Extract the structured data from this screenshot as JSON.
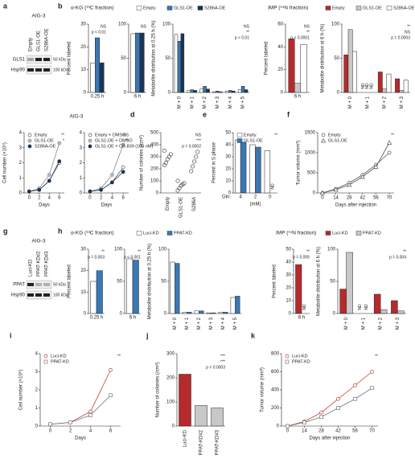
{
  "blots": [
    {
      "label": "a",
      "title": "AIG-3",
      "lanes": [
        "Empty",
        "GLS1-OE",
        "S286A-OE"
      ],
      "rows": [
        "GLS1",
        "Hsp90"
      ],
      "markers": [
        "50 kDa",
        "100 kDa"
      ]
    },
    {
      "label": "g",
      "title": "AIG-3",
      "lanes": [
        "Luci-KD",
        "PPAT-KD#2",
        "PPAT-KD#3"
      ],
      "rows": [
        "PPAT",
        "Hsp90"
      ],
      "markers": [
        "50 kDa",
        "100 kDa"
      ]
    }
  ],
  "chart_data": [
    {
      "type": "bar",
      "panel": "b",
      "group_title": "α-KG (¹³C fraction)",
      "legend": "top",
      "ylabel": "Percent labeled",
      "categories": [
        "0.25 h"
      ],
      "series": [
        {
          "name": "Empty",
          "color": "#ffffff",
          "values": [
            13
          ]
        },
        {
          "name": "GLS1-OE",
          "color": "#3a78b5",
          "values": [
            24
          ]
        },
        {
          "name": "S286A-OE",
          "color": "#1c3553",
          "values": [
            13
          ]
        }
      ],
      "ylim": [
        0,
        30
      ],
      "yticks": [
        0,
        10,
        20,
        30
      ],
      "annotations": [
        "NS",
        "p < 0.01"
      ]
    },
    {
      "type": "bar",
      "categories": [
        "6 h"
      ],
      "series": [
        {
          "color": "#ffffff",
          "values": [
            86
          ]
        },
        {
          "color": "#3a78b5",
          "values": [
            87
          ]
        },
        {
          "color": "#1c3553",
          "values": [
            87
          ]
        }
      ],
      "ylim": [
        0,
        100
      ],
      "yticks": [
        0,
        50,
        100
      ],
      "annotations": [
        "NS"
      ]
    },
    {
      "type": "bar",
      "ylabel": "Metabolite distribution at 0.25 h (%)",
      "categories": [
        "M + 0",
        "M + 1",
        "M + 2",
        "M + 3",
        "M + 4",
        "M + 5"
      ],
      "series": [
        {
          "color": "#ffffff",
          "values": [
            85,
            3,
            5,
            1,
            2,
            4
          ]
        },
        {
          "color": "#3a78b5",
          "values": [
            75,
            4,
            9,
            2,
            3,
            9
          ]
        },
        {
          "color": "#1c3553",
          "values": [
            86,
            3,
            5,
            1,
            2,
            4
          ]
        }
      ],
      "ylim": [
        0,
        100
      ],
      "yticks": [
        0,
        50,
        100
      ],
      "annotations": [
        "NS",
        "**",
        "p < 0.01"
      ]
    },
    {
      "type": "bar",
      "group_title": "IMP (¹⁵N fraction)",
      "legend": "top",
      "ylabel": "Percent labeled",
      "categories": [
        "6 h"
      ],
      "series": [
        {
          "name": "Empty",
          "color": "#b52b2b",
          "values": [
            47
          ]
        },
        {
          "name": "GLS1-OE",
          "color": "#c8c8c8",
          "values": [
            8
          ]
        },
        {
          "name": "S286A-OE",
          "color": "#ffffff",
          "values": [
            42
          ]
        }
      ],
      "ylim": [
        0,
        60
      ],
      "yticks": [
        0,
        20,
        40,
        60
      ],
      "annotations": [
        "NS",
        "**",
        "p < 0.0001"
      ]
    },
    {
      "type": "bar",
      "ylabel": "Metabolite distribution at 6 h (%)",
      "categories": [
        "M + 0",
        "M + 1",
        "M + 2",
        "M + 3"
      ],
      "nd_label": "ND",
      "series": [
        {
          "color": "#b52b2b",
          "values": [
            55,
            null,
            30,
            20
          ]
        },
        {
          "color": "#c8c8c8",
          "values": [
            92,
            null,
            5,
            3
          ]
        },
        {
          "color": "#ffffff",
          "values": [
            60,
            null,
            27,
            18
          ]
        }
      ],
      "ylim": [
        0,
        100
      ],
      "yticks": [
        0,
        50,
        100
      ],
      "annotations": [
        "**",
        "NS",
        "p = 0.0003"
      ]
    },
    {
      "type": "line",
      "panel": "c",
      "title": "AIG-3",
      "legend": "inside",
      "ylabel": "Cell number (×10⁶)",
      "xlabel": "Days",
      "x": [
        0,
        2,
        4,
        6
      ],
      "xlim": [
        -1,
        7
      ],
      "xticks": [
        0,
        2,
        4,
        6
      ],
      "series": [
        {
          "name": "Empty",
          "color": "#555555",
          "marker": "circle-open",
          "values": [
            0.1,
            0.2,
            0.8,
            2.0
          ]
        },
        {
          "name": "GLS1-OE",
          "color": "#888888",
          "marker": "circle-grey",
          "values": [
            0.1,
            0.3,
            1.2,
            3.3
          ]
        },
        {
          "name": "S286A-OE",
          "color": "#1c3553",
          "marker": "circle-filled",
          "values": [
            0.1,
            0.2,
            0.8,
            2.1
          ]
        }
      ],
      "ylim": [
        0,
        4
      ],
      "yticks": [
        0,
        1,
        2,
        3,
        4
      ],
      "annotations": [
        "**",
        "*"
      ]
    },
    {
      "type": "line",
      "legend": "inside",
      "xlabel": "Days",
      "x": [
        0,
        2,
        4,
        6
      ],
      "xlim": [
        -1,
        7
      ],
      "xticks": [
        0,
        2,
        4,
        6
      ],
      "series": [
        {
          "name": "Empty + DMSO",
          "color": "#555555",
          "marker": "circle-open",
          "values": [
            0.1,
            0.2,
            0.7,
            1.7
          ]
        },
        {
          "name": "GLS1-OE + DMSO",
          "color": "#888888",
          "marker": "circle-grey",
          "values": [
            0.1,
            0.3,
            1.2,
            3.2
          ]
        },
        {
          "name": "GLS1-OE + CB-839 (100 nM)",
          "color": "#1c3553",
          "marker": "circle-filled",
          "values": [
            0.1,
            0.2,
            0.7,
            1.4
          ]
        }
      ],
      "ylim": [
        0,
        4
      ],
      "yticks": [
        0,
        1,
        2,
        3,
        4
      ],
      "annotations": [
        "NS",
        "**"
      ]
    },
    {
      "type": "dot",
      "panel": "d",
      "ylabel": "Number of colonies (/cm²)",
      "categories": [
        "Empty",
        "GLS1-OE",
        "S286A"
      ],
      "color": "#333333",
      "values": [
        [
          230,
          250,
          280,
          300,
          320,
          350
        ],
        [
          20,
          40,
          60,
          70,
          80,
          100
        ],
        [
          180,
          220,
          260,
          300,
          340
        ]
      ],
      "ylim": [
        0,
        500
      ],
      "yticks": [
        0,
        100,
        200,
        300,
        400,
        500
      ],
      "annotations": [
        "NS",
        "***",
        "p = 0.0002"
      ]
    },
    {
      "type": "bar",
      "panel": "e",
      "legend": "inside",
      "ylabel": "Percent in S phase",
      "xprefix": "Gln:",
      "xlabel": "(mM)",
      "categories": [
        "4",
        "2",
        "0"
      ],
      "nd_label": "ND",
      "series": [
        {
          "name": "Empty",
          "color": "#ffffff",
          "values": [
            44,
            40,
            35
          ]
        },
        {
          "name": "GLS1-OE",
          "color": "#3a78b5",
          "values": [
            42,
            38,
            null
          ]
        }
      ],
      "ylim": [
        0,
        50
      ],
      "yticks": [
        0,
        10,
        20,
        30,
        40,
        50
      ],
      "annotations": [
        "**"
      ]
    },
    {
      "type": "line",
      "panel": "f",
      "legend": "inside",
      "ylabel": "Tumor volume (mm³)",
      "xlabel": "Days after injection",
      "x": [
        0,
        14,
        28,
        42,
        56,
        70
      ],
      "xlim": [
        -5,
        75
      ],
      "xticks": [
        0,
        14,
        28,
        42,
        56,
        70
      ],
      "series": [
        {
          "name": "Empty",
          "color": "#555555",
          "marker": "circle-open",
          "values": [
            0,
            100,
            250,
            450,
            700,
            1000
          ]
        },
        {
          "name": "GLS1-OE",
          "color": "#555555",
          "marker": "triangle-open",
          "values": [
            0,
            80,
            200,
            400,
            650,
            1250
          ]
        }
      ],
      "ylim": [
        0,
        1500
      ],
      "yticks": [
        0,
        500,
        1000,
        1500
      ],
      "annotations": [
        "**"
      ]
    },
    {
      "type": "bar",
      "panel": "h",
      "group_title": "α-KG (¹³C fraction)",
      "legend": "top",
      "ylabel": "Percent labeled",
      "categories": [
        "0.25 h"
      ],
      "series": [
        {
          "name": "Luci-KD",
          "color": "#ffffff",
          "values": [
            15
          ]
        },
        {
          "name": "PPAT-KD",
          "color": "#3a78b5",
          "values": [
            20
          ]
        }
      ],
      "ylim": [
        0,
        30
      ],
      "yticks": [
        0,
        10,
        20,
        30
      ],
      "annotations": [
        "**",
        "p = 0.003"
      ]
    },
    {
      "type": "bar",
      "categories": [
        "6 h"
      ],
      "series": [
        {
          "color": "#ffffff",
          "values": [
            85
          ]
        },
        {
          "color": "#3a78b5",
          "values": [
            83
          ]
        }
      ],
      "ylim": [
        0,
        100
      ],
      "yticks": [
        0,
        50,
        100
      ],
      "annotations": [
        "**",
        "p < 0.001"
      ]
    },
    {
      "type": "bar",
      "ylabel": "Metabolite distribution at 0.25 h (%)",
      "categories": [
        "M + 0",
        "M + 1",
        "M + 2",
        "M + 3",
        "M + 4",
        "M + 5"
      ],
      "series": [
        {
          "color": "#ffffff",
          "values": [
            80,
            2,
            4,
            1,
            2,
            25
          ]
        },
        {
          "color": "#3a78b5",
          "values": [
            78,
            2,
            4,
            1,
            2,
            27
          ]
        }
      ],
      "ylim": [
        0,
        100
      ],
      "yticks": [
        0,
        50,
        100
      ]
    },
    {
      "type": "bar",
      "group_title": "IMP (¹⁵N fraction)",
      "legend": "top",
      "ylabel": "Percent labeled",
      "categories": [
        "6 h"
      ],
      "nd_label": "ND",
      "series": [
        {
          "name": "Luci-KD",
          "color": "#b52b2b",
          "values": [
            38
          ]
        },
        {
          "name": "PPAT-KD",
          "color": "#c8c8c8",
          "values": [
            null
          ]
        }
      ],
      "ylim": [
        0,
        50
      ],
      "yticks": [
        0,
        10,
        20,
        30,
        40,
        50
      ],
      "annotations": [
        "**",
        "p = 0.005"
      ]
    },
    {
      "type": "bar",
      "ylabel": "Metabolite distribution at 6 h (%)",
      "categories": [
        "M + 0",
        "M + 1",
        "M + 2",
        "M + 3"
      ],
      "nd_label": "ND",
      "series": [
        {
          "color": "#b52b2b",
          "values": [
            38,
            null,
            30,
            20
          ]
        },
        {
          "color": "#c8c8c8",
          "values": [
            95,
            null,
            6,
            4
          ]
        }
      ],
      "ylim": [
        0,
        100
      ],
      "yticks": [
        0,
        50,
        100
      ],
      "annotations": [
        "**",
        "p = 0.004"
      ]
    },
    {
      "type": "line",
      "panel": "i",
      "legend": "inside",
      "ylabel": "Cell number (×10⁶)",
      "xlabel": "Days",
      "x": [
        0,
        2,
        4,
        6
      ],
      "xlim": [
        -1,
        7
      ],
      "xticks": [
        0,
        2,
        4,
        6
      ],
      "series": [
        {
          "name": "Luci-KD",
          "color": "#c0392b",
          "marker": "circle-open",
          "values": [
            0.1,
            0.2,
            0.8,
            3.1
          ]
        },
        {
          "name": "PPAT-KD",
          "color": "#777777",
          "marker": "square-open",
          "values": [
            0.1,
            0.2,
            0.6,
            1.7
          ]
        }
      ],
      "ylim": [
        0,
        4
      ],
      "yticks": [
        0,
        1,
        2,
        3,
        4
      ],
      "annotations": [
        "**"
      ]
    },
    {
      "type": "bar",
      "panel": "j",
      "ylabel": "Number of colonies (/cm²)",
      "categories": [
        "Luci-KD",
        "PPAT-KD#2",
        "PPAT-KD#3"
      ],
      "colors": [
        "#b52b2b",
        "#c8c8c8",
        "#c8c8c8"
      ],
      "series": [
        {
          "values": [
            215,
            85,
            75
          ]
        }
      ],
      "ylim": [
        0,
        300
      ],
      "yticks": [
        0,
        100,
        200,
        300
      ],
      "annotations": [
        "***",
        "***",
        "p = 0.0003"
      ]
    },
    {
      "type": "line",
      "panel": "k",
      "legend": "inside",
      "ylabel": "Tumor volume (mm³)",
      "xlabel": "Days after injection",
      "x": [
        0,
        14,
        28,
        42,
        56,
        70
      ],
      "xlim": [
        -5,
        75
      ],
      "xticks": [
        0,
        14,
        28,
        42,
        56,
        70
      ],
      "series": [
        {
          "name": "Luci-KD",
          "color": "#c0392b",
          "marker": "circle-open",
          "values": [
            0,
            50,
            150,
            300,
            450,
            600
          ]
        },
        {
          "name": "PPAT-KD",
          "color": "#777777",
          "marker": "square-open",
          "values": [
            0,
            40,
            100,
            200,
            300,
            420
          ]
        }
      ],
      "ylim": [
        0,
        800
      ],
      "yticks": [
        0,
        200,
        400,
        600,
        800
      ],
      "annotations": [
        "**"
      ]
    }
  ]
}
